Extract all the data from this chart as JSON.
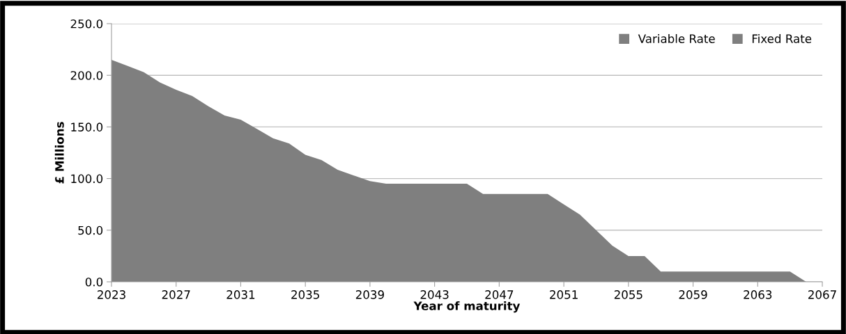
{
  "chart_data": {
    "type": "area",
    "xlabel": "Year of maturity",
    "ylabel": "£ Millions",
    "x": [
      2023,
      2024,
      2025,
      2026,
      2027,
      2028,
      2029,
      2030,
      2031,
      2032,
      2033,
      2034,
      2035,
      2036,
      2037,
      2038,
      2039,
      2040,
      2041,
      2042,
      2043,
      2044,
      2045,
      2046,
      2047,
      2048,
      2049,
      2050,
      2051,
      2052,
      2053,
      2054,
      2055,
      2056,
      2057,
      2058,
      2059,
      2060,
      2061,
      2062,
      2063,
      2064,
      2065,
      2066
    ],
    "series": [
      {
        "name": "Fixed Rate",
        "color": "#7f7f7f",
        "values": [
          215,
          209,
          203,
          193,
          186,
          180,
          170,
          161,
          157,
          148,
          139,
          134,
          123,
          118,
          108.5,
          103,
          97.5,
          95,
          95,
          95,
          95,
          95,
          95,
          85,
          85,
          85,
          85,
          85,
          75,
          65,
          50,
          35,
          25,
          25,
          10,
          10,
          10,
          10,
          10,
          10,
          10,
          10,
          10,
          0
        ]
      },
      {
        "name": "Variable Rate",
        "color": "#7f7f7f",
        "values": [
          null,
          null,
          null,
          null,
          null,
          null,
          null,
          null,
          null,
          null,
          null,
          null,
          null,
          null,
          null,
          null,
          null,
          null,
          null,
          null,
          null,
          null,
          null,
          null,
          null,
          null,
          null,
          null,
          null,
          null,
          null,
          null,
          null,
          null,
          null,
          null,
          null,
          null,
          null,
          null,
          null,
          null,
          null,
          null
        ]
      }
    ],
    "xlim": [
      2023,
      2067
    ],
    "xticks": [
      2023,
      2027,
      2031,
      2035,
      2039,
      2043,
      2047,
      2051,
      2055,
      2059,
      2063,
      2067
    ],
    "ylim": [
      0,
      250
    ],
    "yticks": [
      {
        "value": 0,
        "label": "0.0"
      },
      {
        "value": 50,
        "label": "50.0"
      },
      {
        "value": 100,
        "label": "100.0"
      },
      {
        "value": 150,
        "label": "150.0"
      },
      {
        "value": 200,
        "label": "200.0"
      },
      {
        "value": 250,
        "label": "250.0"
      }
    ],
    "grid": "y",
    "legend": "top right"
  }
}
